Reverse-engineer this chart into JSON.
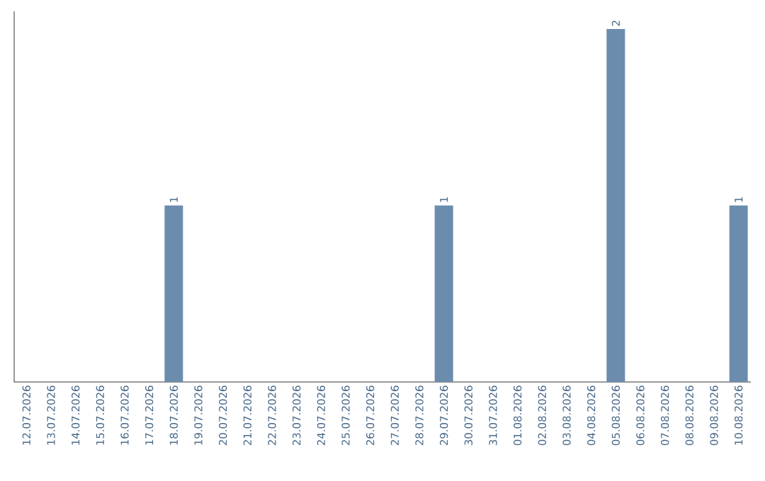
{
  "chart_data": {
    "type": "bar",
    "categories": [
      "12.07.2026",
      "13.07.2026",
      "14.07.2026",
      "15.07.2026",
      "16.07.2026",
      "17.07.2026",
      "18.07.2026",
      "19.07.2026",
      "20.07.2026",
      "21.07.2026",
      "22.07.2026",
      "23.07.2026",
      "24.07.2026",
      "25.07.2026",
      "26.07.2026",
      "27.07.2026",
      "28.07.2026",
      "29.07.2026",
      "30.07.2026",
      "31.07.2026",
      "01.08.2026",
      "02.08.2026",
      "03.08.2026",
      "04.08.2026",
      "05.08.2026",
      "06.08.2026",
      "07.08.2026",
      "08.08.2026",
      "09.08.2026",
      "10.08.2026"
    ],
    "values": [
      0,
      0,
      0,
      0,
      0,
      0,
      1,
      0,
      0,
      0,
      0,
      0,
      0,
      0,
      0,
      0,
      0,
      1,
      0,
      0,
      0,
      0,
      0,
      0,
      2,
      0,
      0,
      0,
      0,
      1
    ],
    "value_labels": [
      null,
      null,
      null,
      null,
      null,
      null,
      "1",
      null,
      null,
      null,
      null,
      null,
      null,
      null,
      null,
      null,
      null,
      "1",
      null,
      null,
      null,
      null,
      null,
      null,
      "2",
      null,
      null,
      null,
      null,
      "1"
    ],
    "color": "#6b8cad",
    "ylim": [
      0,
      2.1
    ],
    "tick_labels": "x"
  }
}
